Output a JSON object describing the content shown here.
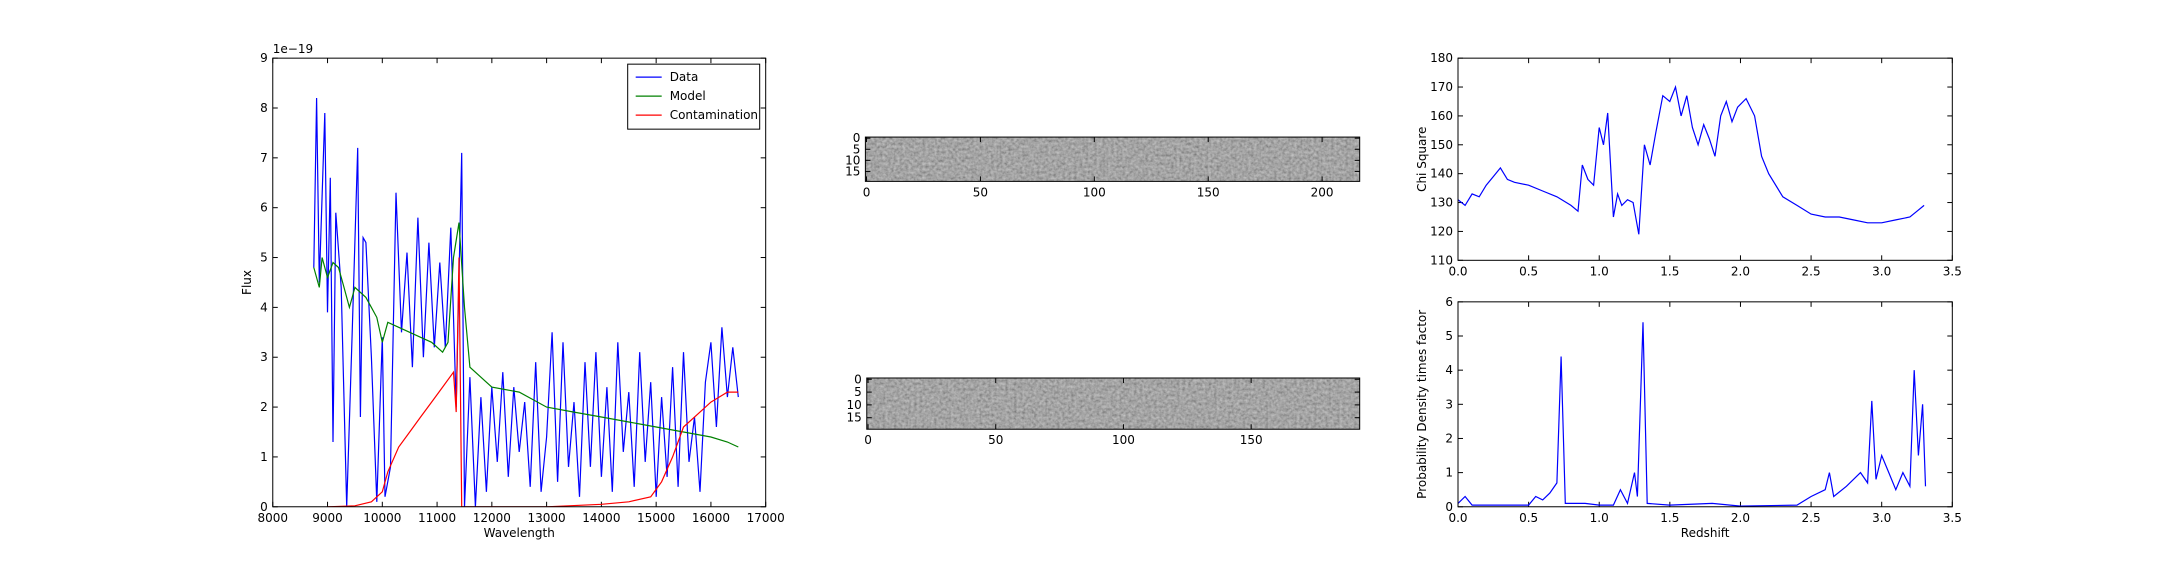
{
  "chart_data": [
    {
      "type": "line",
      "xlabel": "Wavelength",
      "ylabel": "Flux",
      "offset_text": "1e−19",
      "xlim": [
        8000,
        17000
      ],
      "xticks": [
        8000,
        9000,
        10000,
        11000,
        12000,
        13000,
        14000,
        15000,
        16000,
        17000
      ],
      "ylim": [
        0,
        9
      ],
      "yticks": [
        0,
        1,
        2,
        3,
        4,
        5,
        6,
        7,
        8,
        9
      ],
      "legend": "upper right",
      "series": [
        {
          "name": "Data",
          "color": "#0000ff",
          "x": [
            8750,
            8800,
            8850,
            8950,
            9000,
            9050,
            9100,
            9150,
            9250,
            9350,
            9450,
            9550,
            9600,
            9650,
            9700,
            9800,
            9900,
            10000,
            10050,
            10150,
            10250,
            10350,
            10450,
            10550,
            10650,
            10750,
            10850,
            10950,
            11050,
            11150,
            11250,
            11350,
            11450,
            11500,
            11600,
            11700,
            11800,
            11900,
            12000,
            12100,
            12200,
            12300,
            12400,
            12500,
            12600,
            12700,
            12800,
            12900,
            13000,
            13100,
            13200,
            13300,
            13400,
            13500,
            13600,
            13700,
            13800,
            13900,
            14000,
            14100,
            14200,
            14300,
            14400,
            14500,
            14600,
            14700,
            14800,
            14900,
            15000,
            15100,
            15200,
            15300,
            15400,
            15500,
            15600,
            15700,
            15800,
            15900,
            16000,
            16100,
            16200,
            16300,
            16400,
            16500
          ],
          "values": [
            4.8,
            8.2,
            4.5,
            7.9,
            3.9,
            6.6,
            1.3,
            5.9,
            4.4,
            0,
            3.5,
            7.2,
            1.8,
            5.4,
            5.3,
            3.0,
            0.1,
            3.4,
            0.2,
            0.8,
            6.3,
            3.5,
            5.1,
            2.8,
            5.8,
            3.0,
            5.3,
            3.2,
            4.9,
            3.2,
            5.6,
            2.0,
            7.1,
            0,
            2.6,
            0,
            2.2,
            0.3,
            2.4,
            0.9,
            2.7,
            0.6,
            2.4,
            1.1,
            2.1,
            0.4,
            2.9,
            0.3,
            1.4,
            3.5,
            0.5,
            3.3,
            0.8,
            2.1,
            0.2,
            2.9,
            0.8,
            3.1,
            0.6,
            2.4,
            0.3,
            3.3,
            1.1,
            2.3,
            0.4,
            3.1,
            0.9,
            2.5,
            0.2,
            2.2,
            0.6,
            2.8,
            0.4,
            3.1,
            0.9,
            1.8,
            0.3,
            2.5,
            3.3,
            1.6,
            3.6,
            2.2,
            3.2,
            2.2
          ]
        },
        {
          "name": "Model",
          "color": "#008000",
          "x": [
            8750,
            8850,
            8900,
            9000,
            9100,
            9200,
            9300,
            9400,
            9450,
            9500,
            9700,
            9800,
            9900,
            10000,
            10100,
            10300,
            10500,
            10700,
            10900,
            11100,
            11200,
            11300,
            11400,
            11500,
            11600,
            11800,
            12000,
            12500,
            13000,
            13500,
            14000,
            14500,
            15000,
            15500,
            16000,
            16300,
            16400,
            16500
          ],
          "values": [
            4.8,
            4.4,
            5.0,
            4.6,
            4.9,
            4.8,
            4.4,
            4.0,
            4.2,
            4.4,
            4.2,
            4.0,
            3.8,
            3.3,
            3.7,
            3.6,
            3.5,
            3.4,
            3.3,
            3.1,
            3.3,
            5.0,
            5.7,
            4.0,
            2.8,
            2.6,
            2.4,
            2.3,
            2.0,
            1.9,
            1.8,
            1.7,
            1.6,
            1.5,
            1.4,
            1.3,
            1.25,
            1.2
          ]
        },
        {
          "name": "Contamination",
          "color": "#ff0000",
          "x": [
            9000,
            9500,
            9800,
            10000,
            10100,
            10300,
            10500,
            10700,
            10900,
            11100,
            11300,
            11350,
            11400,
            11450,
            12000,
            13000,
            14000,
            14500,
            14900,
            15100,
            15300,
            15500,
            15800,
            16000,
            16300,
            16500
          ],
          "values": [
            0,
            0.02,
            0.1,
            0.3,
            0.7,
            1.2,
            1.5,
            1.8,
            2.1,
            2.4,
            2.7,
            1.9,
            5.0,
            0,
            0,
            0,
            0.05,
            0.1,
            0.2,
            0.5,
            1.0,
            1.6,
            1.9,
            2.1,
            2.3,
            2.3
          ]
        }
      ]
    },
    {
      "type": "image",
      "xlim": [
        -0.5,
        216.5
      ],
      "xticks": [
        0,
        50,
        100,
        150,
        200
      ],
      "ylim": [
        19.5,
        -0.5
      ],
      "yticks": [
        0,
        5,
        10,
        15
      ]
    },
    {
      "type": "image",
      "xlim": [
        -0.5,
        192.5
      ],
      "xticks": [
        0,
        50,
        100,
        150
      ],
      "ylim": [
        19.5,
        -0.5
      ],
      "yticks": [
        0,
        5,
        10,
        15
      ]
    },
    {
      "type": "line",
      "ylabel": "Chi Square",
      "xlim": [
        0,
        3.5
      ],
      "xticks": [
        {
          "value": 0,
          "label": "0.0"
        },
        0.5,
        {
          "value": 1,
          "label": "1.0"
        },
        1.5,
        {
          "value": 2,
          "label": "2.0"
        },
        2.5,
        {
          "value": 3,
          "label": "3.0"
        },
        3.5
      ],
      "ylim": [
        110,
        180
      ],
      "yticks": [
        110,
        120,
        130,
        140,
        150,
        160,
        170,
        180
      ],
      "series": [
        {
          "color": "#0000ff",
          "x": [
            0,
            0.05,
            0.1,
            0.15,
            0.2,
            0.25,
            0.3,
            0.35,
            0.4,
            0.5,
            0.6,
            0.7,
            0.8,
            0.85,
            0.88,
            0.92,
            0.96,
            1.0,
            1.03,
            1.06,
            1.1,
            1.13,
            1.16,
            1.2,
            1.24,
            1.28,
            1.32,
            1.36,
            1.4,
            1.45,
            1.5,
            1.54,
            1.58,
            1.62,
            1.66,
            1.7,
            1.74,
            1.78,
            1.82,
            1.86,
            1.9,
            1.94,
            1.98,
            2.04,
            2.1,
            2.15,
            2.2,
            2.3,
            2.4,
            2.5,
            2.6,
            2.7,
            2.8,
            2.9,
            3.0,
            3.1,
            3.2,
            3.25,
            3.3
          ],
          "values": [
            131,
            129,
            133,
            132,
            136,
            139,
            142,
            138,
            137,
            136,
            134,
            132,
            129,
            127,
            143,
            138,
            136,
            156,
            150,
            161,
            125,
            133,
            129,
            131,
            130,
            119,
            150,
            143,
            154,
            167,
            165,
            170,
            160,
            167,
            156,
            150,
            157,
            152,
            146,
            160,
            165,
            158,
            163,
            166,
            160,
            146,
            140,
            132,
            129,
            126,
            125,
            125,
            124,
            123,
            123,
            124,
            125,
            127,
            129
          ]
        }
      ]
    },
    {
      "type": "line",
      "xlabel": "Redshift",
      "ylabel": "Probability Density times factor",
      "xlim": [
        0,
        3.5
      ],
      "xticks": [
        {
          "value": 0,
          "label": "0.0"
        },
        0.5,
        {
          "value": 1,
          "label": "1.0"
        },
        1.5,
        {
          "value": 2,
          "label": "2.0"
        },
        2.5,
        {
          "value": 3,
          "label": "3.0"
        },
        3.5
      ],
      "ylim": [
        0,
        6
      ],
      "yticks": [
        0,
        1,
        2,
        3,
        4,
        5,
        6
      ],
      "series": [
        {
          "color": "#0000ff",
          "x": [
            0,
            0.05,
            0.1,
            0.2,
            0.5,
            0.55,
            0.6,
            0.65,
            0.7,
            0.73,
            0.76,
            0.9,
            1.0,
            1.1,
            1.15,
            1.2,
            1.25,
            1.27,
            1.31,
            1.34,
            1.5,
            1.8,
            2.0,
            2.4,
            2.5,
            2.6,
            2.63,
            2.66,
            2.75,
            2.85,
            2.9,
            2.93,
            2.96,
            3.0,
            3.05,
            3.1,
            3.15,
            3.2,
            3.23,
            3.26,
            3.29,
            3.31
          ],
          "values": [
            0.1,
            0.3,
            0.05,
            0.05,
            0.05,
            0.3,
            0.2,
            0.4,
            0.7,
            4.4,
            0.1,
            0.1,
            0.05,
            0.05,
            0.5,
            0.1,
            1.0,
            0.3,
            5.4,
            0.1,
            0.05,
            0.1,
            0.02,
            0.05,
            0.3,
            0.5,
            1.0,
            0.3,
            0.6,
            1.0,
            0.7,
            3.1,
            0.8,
            1.5,
            1.0,
            0.5,
            1.0,
            0.6,
            4.0,
            1.5,
            3.0,
            0.6
          ]
        }
      ]
    }
  ]
}
